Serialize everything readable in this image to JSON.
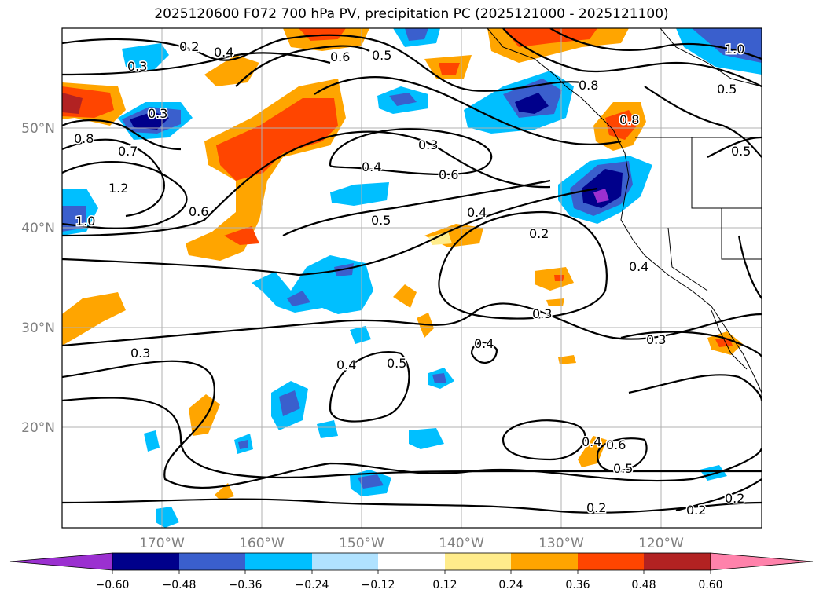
{
  "title": "2025120600 F072 700 hPa PV, precipitation PC (2025121000 - 2025121100)",
  "map": {
    "lat_labels": [
      "50°N",
      "40°N",
      "30°N",
      "20°N"
    ],
    "lon_labels": [
      "170°W",
      "160°W",
      "150°W",
      "140°W",
      "130°W",
      "120°W"
    ],
    "gridlines": true,
    "projection_extent": {
      "lon_range": [
        -180,
        -110
      ],
      "lat_range": [
        10,
        60
      ]
    }
  },
  "contours": {
    "variable": "700 hPa PV",
    "labels": [
      "0.3",
      "0.2",
      "0.4",
      "0.6",
      "0.5",
      "1.0",
      "0.8",
      "0.5",
      "0.3",
      "0.7",
      "1.2",
      "1.0",
      "0.8",
      "0.8",
      "0.5",
      "0.3",
      "0.4",
      "0.6",
      "0.5",
      "0.6",
      "0.4",
      "0.2",
      "0.3",
      "0.4",
      "0.5",
      "0.4",
      "0.3",
      "0.3",
      "0.4",
      "0.6",
      "0.5",
      "0.2",
      "0.2",
      "0.2",
      "0.4"
    ]
  },
  "colorbar": {
    "ticks": [
      "−0.60",
      "−0.48",
      "−0.36",
      "−0.24",
      "−0.12",
      "0.12",
      "0.24",
      "0.36",
      "0.48",
      "0.60"
    ],
    "colors": [
      "#9b30d0",
      "#00008b",
      "#3a5fcd",
      "#00bfff",
      "#b0e2ff",
      "#ffffff",
      "#ffec8b",
      "#ffa500",
      "#ff4500",
      "#b22222",
      "#ff82ab"
    ],
    "extend": "both"
  }
}
